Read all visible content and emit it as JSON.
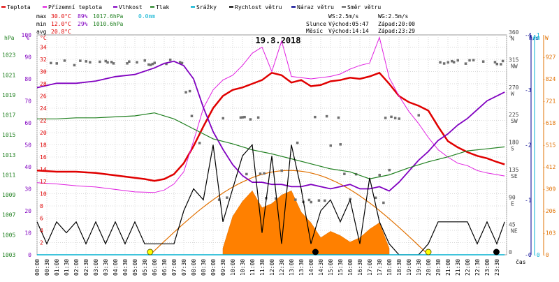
{
  "legend": [
    {
      "label": "Teplota",
      "color": "#e00000"
    },
    {
      "label": "Přízemní teplota",
      "color": "#e020e0"
    },
    {
      "label": "Vlhkost",
      "color": "#8000c0"
    },
    {
      "label": "Tlak",
      "color": "#208020"
    },
    {
      "label": "Srážky",
      "color": "#00b0d0"
    },
    {
      "label": "Rychlost větru",
      "color": "#000000"
    },
    {
      "label": "Náraz větru",
      "color": "#000090"
    },
    {
      "label": "Směr větru",
      "color": "#606060"
    }
  ],
  "stats": {
    "max": {
      "label": "max",
      "temp": "30.0°C",
      "hum": "89%",
      "press": "1017.6hPa",
      "rain": "0.0mm"
    },
    "min": {
      "label": "min",
      "temp": "12.0°C",
      "hum": "29%",
      "press": "1010.6hPa"
    },
    "avg": {
      "label": "avg",
      "temp": "20.8°C"
    }
  },
  "wind_info": {
    "ws": "WS:2.5m/s",
    "wg": "WG:2.5m/s"
  },
  "sun": {
    "label": "Slunce",
    "rise": "Východ:05:47",
    "set": "Západ:20:00"
  },
  "moon": {
    "label": "Měsíc",
    "rise": "Východ:14:14",
    "set": "Západ:23:29"
  },
  "title": "19.8.2018",
  "time_label": "čas",
  "chart_data": {
    "type": "line",
    "title": "19.8.2018",
    "x_label": "čas",
    "x_ticks": [
      "00:00",
      "00:30",
      "01:00",
      "01:30",
      "02:00",
      "02:30",
      "03:00",
      "03:30",
      "04:00",
      "04:30",
      "05:00",
      "05:30",
      "06:00",
      "06:30",
      "07:00",
      "07:30",
      "08:00",
      "08:30",
      "09:00",
      "09:30",
      "10:00",
      "10:30",
      "11:00",
      "11:30",
      "12:00",
      "12:30",
      "13:00",
      "13:30",
      "14:00",
      "14:30",
      "15:00",
      "15:30",
      "16:00",
      "16:30",
      "17:00",
      "17:30",
      "18:00",
      "18:30",
      "19:00",
      "19:30",
      "20:00",
      "20:30",
      "21:00",
      "21:30",
      "22:00",
      "22:30",
      "23:00",
      "23:30"
    ],
    "axes": {
      "hpa": {
        "label": "hPa",
        "ticks": [
          1003,
          1005,
          1007,
          1009,
          1011,
          1013,
          1015,
          1017,
          1019,
          1021,
          1023
        ],
        "range": [
          1003,
          1025
        ]
      },
      "pct": {
        "label": "%",
        "ticks": [
          0,
          10,
          20,
          30,
          40,
          50,
          60,
          70,
          80,
          90,
          100
        ],
        "range": [
          0,
          100
        ]
      },
      "temp": {
        "label": "°C",
        "ticks": [
          2,
          4,
          6,
          8,
          10,
          12,
          14,
          16,
          18,
          20,
          22,
          24,
          26,
          28,
          30,
          32,
          34
        ],
        "range": [
          0,
          36
        ]
      },
      "dir": {
        "label": "°",
        "ticks": [
          "0",
          "45",
          "90",
          "135",
          "180",
          "225",
          "270",
          "315",
          "360"
        ],
        "names": [
          "",
          "NE",
          "E",
          "SE",
          "S",
          "SW",
          "W",
          "NW",
          "N"
        ]
      },
      "wind": {
        "label": "m/s",
        "ticks": [
          0,
          1,
          2,
          3,
          4
        ],
        "range": [
          0,
          4
        ]
      },
      "rain": {
        "label": "mm",
        "ticks": [
          0,
          1
        ],
        "range": [
          0,
          1
        ]
      },
      "solar": {
        "label": "W",
        "ticks": [
          0,
          103,
          206,
          309,
          412,
          515,
          618,
          721,
          824,
          927
        ],
        "range": [
          0,
          1030
        ]
      }
    },
    "series": [
      {
        "name": "Teplota",
        "axis": "temp",
        "x": [
          0,
          1,
          2,
          3,
          4,
          5,
          5.5,
          6,
          6.5,
          7,
          7.5,
          8,
          8.5,
          9,
          9.5,
          10,
          10.5,
          11,
          11.5,
          12,
          12.5,
          13,
          13.5,
          14,
          14.5,
          15,
          15.5,
          16,
          16.5,
          17,
          17.5,
          18,
          18.5,
          19,
          19.5,
          20,
          20.5,
          21,
          21.5,
          22,
          22.5,
          23,
          23.5,
          23.9
        ],
        "y": [
          13.8,
          13.6,
          13.6,
          13.4,
          13,
          12.6,
          12.4,
          12.1,
          12.4,
          13.2,
          15,
          17.8,
          21,
          24,
          26,
          27,
          27.4,
          28,
          28.6,
          29.8,
          29.4,
          28.2,
          28.6,
          27.6,
          27.8,
          28.4,
          28.6,
          29,
          28.8,
          29.2,
          29.8,
          28,
          26,
          25,
          24.4,
          23.6,
          21,
          18.6,
          17.6,
          16.8,
          16.2,
          15.8,
          15.2,
          14.8
        ]
      },
      {
        "name": "Přízemní teplota",
        "axis": "temp",
        "x": [
          0,
          1,
          2,
          3,
          4,
          5,
          6,
          6.5,
          7,
          7.5,
          8,
          8.5,
          9,
          9.5,
          10,
          10.5,
          11,
          11.5,
          12,
          12.5,
          13,
          13.5,
          14,
          14.5,
          15,
          15.5,
          16,
          16.5,
          17,
          17.5,
          18,
          18.5,
          19,
          19.5,
          20,
          20.5,
          21,
          21.5,
          22,
          22.5,
          23,
          23.9
        ],
        "y": [
          11.8,
          11.6,
          11.3,
          11.1,
          10.7,
          10.3,
          10.2,
          10.6,
          11.6,
          13.6,
          18.6,
          24,
          27,
          28.6,
          29.4,
          31,
          33,
          34,
          30,
          35,
          29.2,
          29,
          28.8,
          29,
          29.2,
          29.6,
          30.4,
          31,
          31.4,
          35.6,
          29,
          26,
          23.5,
          21.5,
          19.2,
          17.2,
          16,
          15,
          14.6,
          13.8,
          13.4,
          12.9
        ]
      },
      {
        "name": "Vlhkost",
        "axis": "pct",
        "x": [
          0,
          1,
          2,
          3,
          4,
          5,
          6,
          6.5,
          7,
          7.5,
          8,
          8.5,
          9,
          9.5,
          10,
          10.5,
          11,
          11.5,
          12,
          12.5,
          13,
          13.5,
          14,
          14.5,
          15,
          15.5,
          16,
          16.5,
          17,
          17.5,
          18,
          18.5,
          19,
          19.5,
          20,
          20.5,
          21,
          21.5,
          22,
          22.5,
          23,
          23.9
        ],
        "y": [
          76,
          78,
          78,
          79,
          81,
          82,
          85,
          87,
          88,
          86,
          80,
          67,
          56,
          48,
          41,
          36,
          33,
          33,
          32,
          32,
          31,
          31,
          32,
          31,
          30,
          31,
          32,
          30,
          30,
          31,
          29,
          33,
          38,
          43,
          47,
          52,
          55,
          59,
          62,
          66,
          70,
          74
        ]
      },
      {
        "name": "Tlak",
        "axis": "hpa",
        "x": [
          0,
          1,
          2,
          3,
          4,
          5,
          6,
          7,
          8,
          9,
          10,
          11,
          12,
          13,
          14,
          15,
          16,
          17,
          18,
          19,
          20,
          21,
          22,
          23,
          23.9
        ],
        "y": [
          1016.6,
          1016.6,
          1016.7,
          1016.7,
          1016.8,
          1016.9,
          1017.2,
          1016.6,
          1015.6,
          1014.6,
          1014.1,
          1013.5,
          1013.1,
          1012.6,
          1012.1,
          1011.6,
          1011.3,
          1010.6,
          1011.0,
          1011.7,
          1012.3,
          1012.8,
          1013.4,
          1013.6,
          1013.8
        ]
      },
      {
        "name": "Rychlost větru",
        "axis": "wind",
        "x": [
          0,
          0.5,
          1,
          1.5,
          2,
          2.5,
          3,
          3.5,
          4,
          4.5,
          5,
          5.5,
          6,
          6.5,
          7,
          7.5,
          8,
          8.5,
          9,
          9.5,
          10,
          10.5,
          11,
          11.5,
          12,
          12.5,
          13,
          13.5,
          14,
          14.5,
          15,
          15.5,
          16,
          16.5,
          17,
          17.5,
          18,
          18.5,
          19,
          19.5,
          20,
          20.5,
          21,
          21.5,
          22,
          22.5,
          23,
          23.5,
          23.9
        ],
        "y": [
          0.6,
          0.2,
          0.6,
          0.4,
          0.6,
          0.2,
          0.6,
          0.2,
          0.6,
          0.2,
          0.6,
          0.2,
          0.2,
          0.2,
          0.2,
          0.8,
          1.2,
          1.0,
          2.0,
          0.6,
          1.2,
          1.8,
          2.0,
          0.4,
          1.8,
          0.2,
          2.0,
          1.2,
          0.2,
          0.8,
          1.0,
          0.6,
          1.0,
          0.2,
          1.4,
          0.6,
          0.2,
          0,
          0,
          0,
          0.2,
          0.6,
          0.6,
          0.6,
          0.6,
          0.2,
          0.6,
          0.2,
          0.6
        ]
      },
      {
        "name": "Srážky",
        "axis": "rain",
        "x": [
          0,
          23.9
        ],
        "y": [
          0,
          0
        ]
      }
    ],
    "wind_direction_marks": {
      "axis": "dir",
      "note": "gray squares (Směr větru)"
    },
    "solar_curve": {
      "axis": "solar",
      "x": [
        5.78,
        13.0,
        20.0
      ],
      "y": [
        0,
        395,
        0
      ]
    },
    "solar_radiation_fill": {
      "axis": "solar",
      "x": [
        9.5,
        10,
        10.5,
        11,
        11.5,
        12,
        12.5,
        13,
        13.5,
        14,
        14.5,
        15,
        15.5,
        16,
        16.5,
        17,
        17.5,
        18
      ],
      "y": [
        30,
        180,
        250,
        300,
        220,
        240,
        280,
        300,
        200,
        150,
        80,
        110,
        90,
        60,
        80,
        120,
        150,
        30
      ]
    },
    "moon_marks": [
      {
        "x": 14.23,
        "type": "moonrise"
      },
      {
        "x": 23.48,
        "type": "moonset"
      }
    ],
    "sun_marks": [
      {
        "x": 5.78,
        "type": "sunrise"
      },
      {
        "x": 20.0,
        "type": "sunset"
      }
    ]
  }
}
